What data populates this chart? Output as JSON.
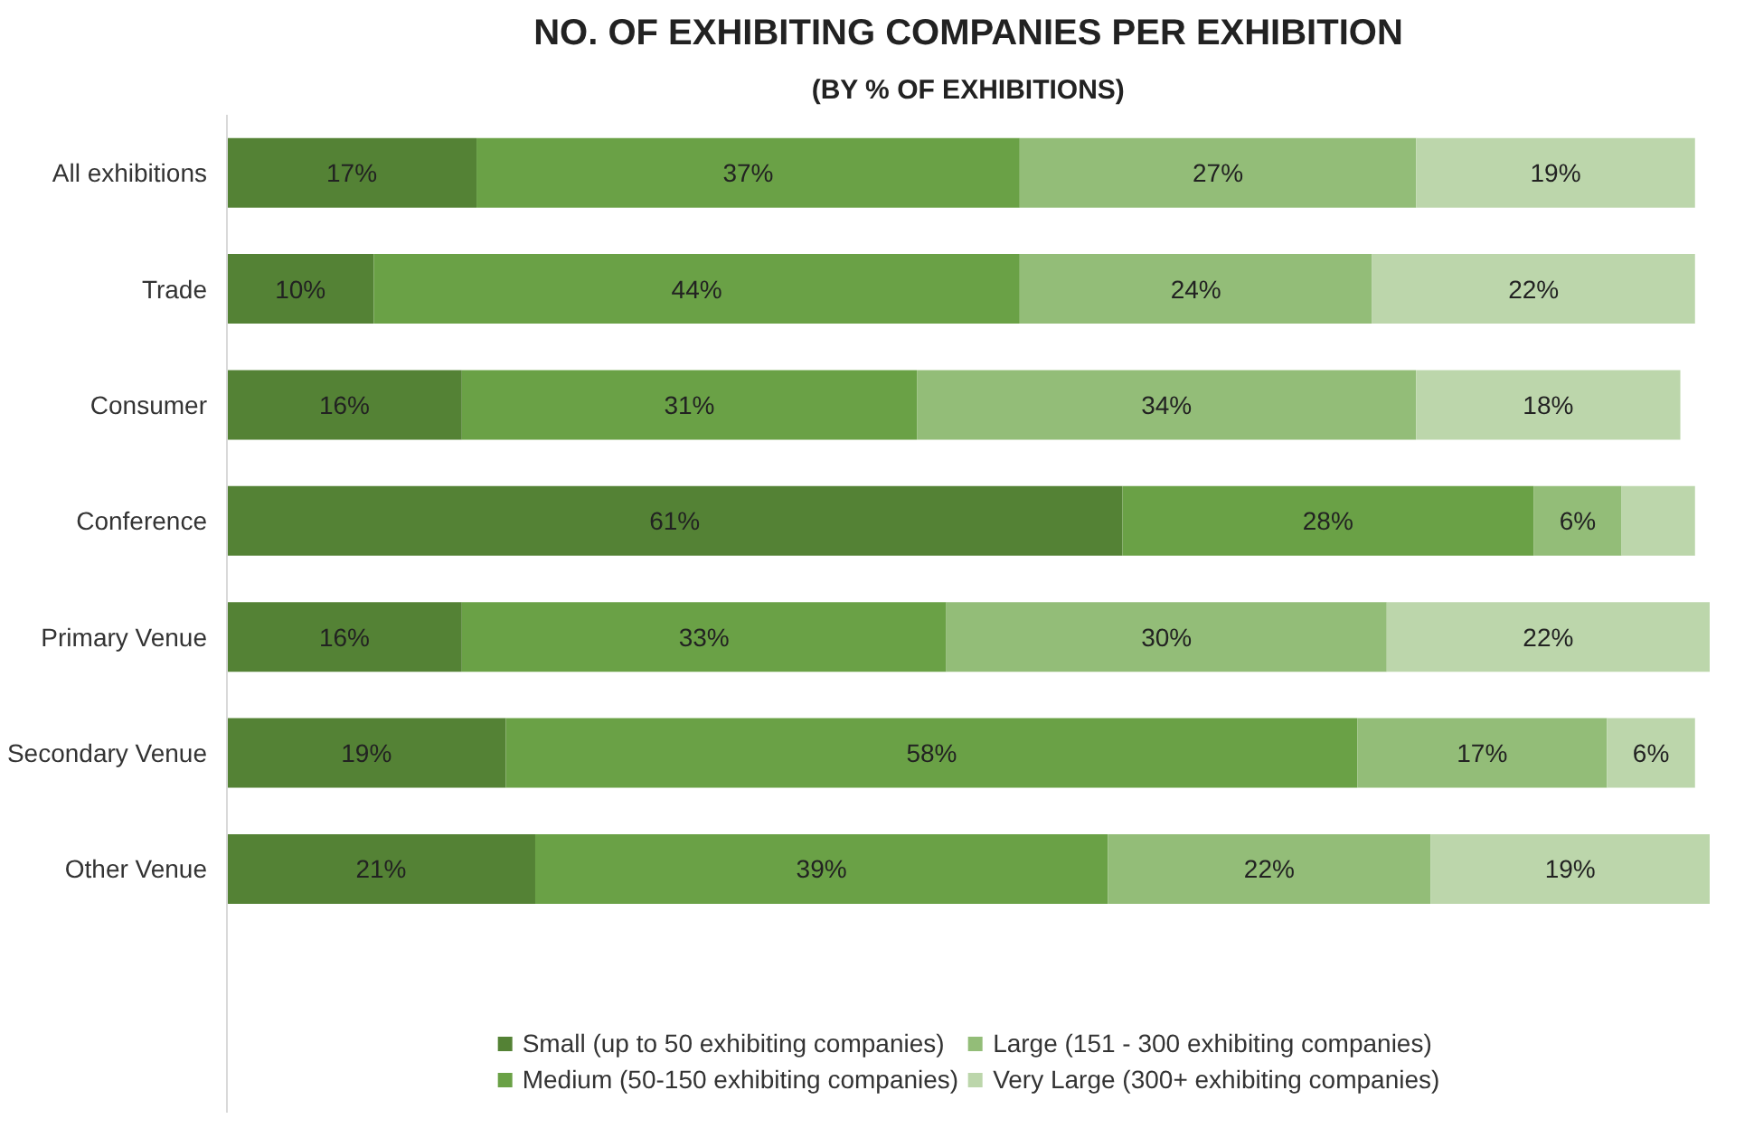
{
  "chart_data": {
    "type": "bar",
    "orientation": "horizontal",
    "stacked": true,
    "title": "NO. OF EXHIBITING COMPANIES PER EXHIBITION",
    "subtitle": "(BY % OF EXHIBITIONS)",
    "categories": [
      "All exhibitions",
      "Trade",
      "Consumer",
      "Conference",
      "Primary Venue",
      "Secondary Venue",
      "Other Venue"
    ],
    "xlim": [
      0,
      101
    ],
    "tick_labels": "y",
    "grid": false,
    "legend": "bottom",
    "series": [
      {
        "name": "Small (up to 50 exhibiting companies)",
        "color": "#548235",
        "values": [
          17,
          10,
          16,
          61,
          16,
          19,
          21
        ],
        "value_labels": [
          "17%",
          "10%",
          "16%",
          "61%",
          "16%",
          "19%",
          "21%"
        ]
      },
      {
        "name": "Medium (50-150 exhibiting companies)",
        "color": "#6aa146",
        "values": [
          37,
          44,
          31,
          28,
          33,
          58,
          39
        ],
        "value_labels": [
          "37%",
          "44%",
          "31%",
          "28%",
          "33%",
          "58%",
          "39%"
        ]
      },
      {
        "name": "Large (151 - 300 exhibiting companies)",
        "color": "#93bd78",
        "values": [
          27,
          24,
          34,
          6,
          30,
          17,
          22
        ],
        "value_labels": [
          "27%",
          "24%",
          "34%",
          "6%",
          "30%",
          "17%",
          "22%"
        ]
      },
      {
        "name": "Very Large (300+ exhibiting companies)",
        "color": "#bcd6ab",
        "values": [
          19,
          22,
          18,
          5,
          22,
          6,
          19
        ],
        "value_labels": [
          "19%",
          "22%",
          "18%",
          null,
          "22%",
          "6%",
          "19%"
        ]
      }
    ]
  }
}
